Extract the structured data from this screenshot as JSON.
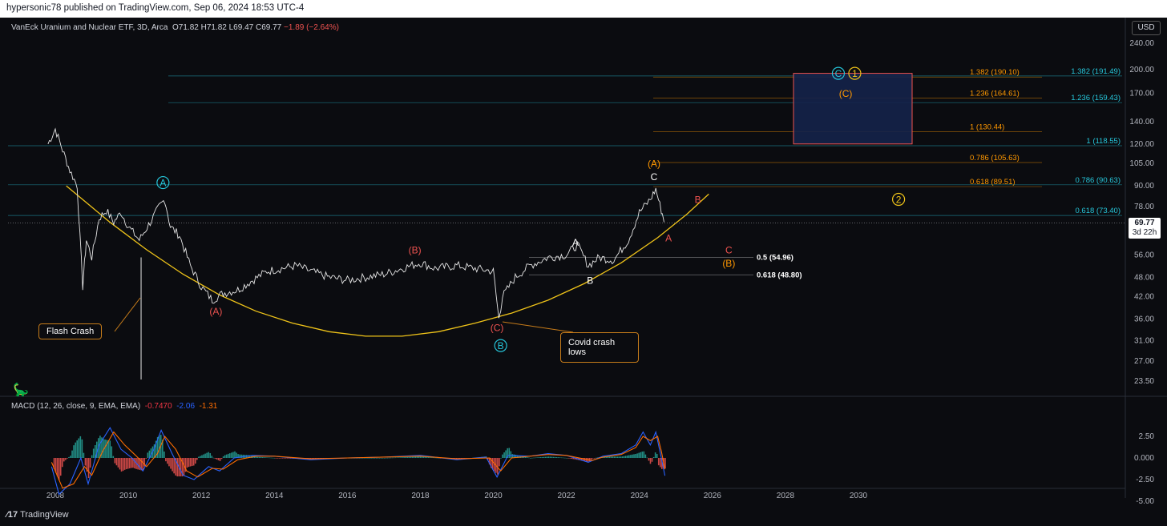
{
  "header": {
    "publisher": "hypersonic78 published on TradingView.com, Sep 06, 2024 18:53 UTC-4"
  },
  "legend": {
    "title": "VanEck Uranium and Nuclear ETF, 3D, Arca",
    "ohlc": "O71.82 H71.82 L69.47 C69.77",
    "change": "−1.89 (−2.64%)"
  },
  "macd_legend": {
    "label": "MACD (12, 26, close, 9, EMA, EMA)",
    "hist": "-0.7470",
    "macd": "-2.06",
    "signal": "-1.31"
  },
  "currency": "USD",
  "last_price": {
    "value": "69.77",
    "countdown": "3d 22h"
  },
  "logo": "TradingView",
  "colors": {
    "background": "#0b0c10",
    "up": "#26a69a",
    "down": "#ef5350",
    "curve": "#f0c419",
    "fib_orange": "#ff9800",
    "fib_cyan": "#26c6da",
    "box": "#1a2a5a"
  },
  "callouts": {
    "flash_crash": "Flash Crash",
    "covid_line1": "Covid crash",
    "covid_line2": "lows"
  },
  "chart_data": {
    "type": "line",
    "y_scale": "log",
    "ylim": [
      23.5,
      240
    ],
    "xlim": [
      2007.5,
      2031
    ],
    "x_ticks": [
      "2008",
      "2010",
      "2012",
      "2014",
      "2016",
      "2018",
      "2020",
      "2022",
      "2024",
      "2026",
      "2028",
      "2030"
    ],
    "y_ticks": [
      "240.00",
      "200.00",
      "170.00",
      "140.00",
      "120.00",
      "105.00",
      "90.00",
      "78.00",
      "67.00",
      "56.00",
      "48.00",
      "42.00",
      "36.00",
      "31.00",
      "27.00",
      "23.50"
    ],
    "series": [
      {
        "values": [
          [
            2007.8,
            120
          ],
          [
            2008.0,
            133
          ],
          [
            2008.2,
            115
          ],
          [
            2008.4,
            100
          ],
          [
            2008.6,
            90
          ],
          [
            2008.75,
            45
          ],
          [
            2008.85,
            62
          ],
          [
            2009.0,
            55
          ],
          [
            2009.2,
            72
          ],
          [
            2009.4,
            76
          ],
          [
            2009.6,
            70
          ],
          [
            2009.8,
            75
          ],
          [
            2010.0,
            68
          ],
          [
            2010.3,
            62
          ],
          [
            2010.6,
            70
          ],
          [
            2010.85,
            78
          ],
          [
            2011.0,
            82
          ],
          [
            2011.15,
            68
          ],
          [
            2011.4,
            64
          ],
          [
            2011.7,
            52
          ],
          [
            2012.0,
            45
          ],
          [
            2012.3,
            41
          ],
          [
            2012.6,
            43
          ],
          [
            2013.0,
            44
          ],
          [
            2013.4,
            47
          ],
          [
            2013.8,
            50
          ],
          [
            2014.2,
            51
          ],
          [
            2014.6,
            52
          ],
          [
            2015.0,
            50
          ],
          [
            2015.5,
            48
          ],
          [
            2016.0,
            47
          ],
          [
            2016.5,
            48
          ],
          [
            2017.0,
            49
          ],
          [
            2017.5,
            51
          ],
          [
            2018.0,
            53
          ],
          [
            2018.4,
            51
          ],
          [
            2019.0,
            52
          ],
          [
            2019.5,
            51
          ],
          [
            2020.0,
            50
          ],
          [
            2020.15,
            36
          ],
          [
            2020.25,
            42
          ],
          [
            2020.6,
            48
          ],
          [
            2021.0,
            52
          ],
          [
            2021.5,
            55
          ],
          [
            2022.0,
            56
          ],
          [
            2022.3,
            60
          ],
          [
            2022.6,
            52
          ],
          [
            2022.9,
            55
          ],
          [
            2023.3,
            54
          ],
          [
            2023.7,
            62
          ],
          [
            2024.0,
            75
          ],
          [
            2024.3,
            82
          ],
          [
            2024.45,
            88
          ],
          [
            2024.6,
            76
          ],
          [
            2024.7,
            69.77
          ]
        ]
      }
    ],
    "fib_levels_left": [
      {
        "label": "1.382 (190.10)",
        "y": 190.1
      },
      {
        "label": "1.236 (164.61)",
        "y": 164.61
      },
      {
        "label": "1 (130.44)",
        "y": 130.44
      },
      {
        "label": "0.786 (105.63)",
        "y": 105.63
      },
      {
        "label": "0.618 (89.51)",
        "y": 89.51
      }
    ],
    "fib_levels_right": [
      {
        "label": "1.382 (191.49)",
        "y": 191.49
      },
      {
        "label": "1.236 (159.43)",
        "y": 159.43
      },
      {
        "label": "1 (118.55)",
        "y": 118.55
      },
      {
        "label": "0.786 (90.63)",
        "y": 90.63
      },
      {
        "label": "0.618 (73.40)",
        "y": 73.4
      }
    ],
    "fib_levels_low": [
      {
        "label": "0.5 (54.96)",
        "y": 54.96
      },
      {
        "label": "0.618 (48.80)",
        "y": 48.8
      }
    ],
    "wave_labels": [
      {
        "text": "A",
        "x": 2010.95,
        "y": 92,
        "color": "#26c6da",
        "circled": true
      },
      {
        "text": "B",
        "x": 2020.2,
        "y": 30,
        "color": "#26c6da",
        "circled": true
      },
      {
        "text": "C",
        "x": 2029.45,
        "y": 195,
        "color": "#26c6da",
        "circled": true
      },
      {
        "text": "1",
        "x": 2029.9,
        "y": 195,
        "color": "#f0c419",
        "circled": true
      },
      {
        "text": "2",
        "x": 2031.1,
        "y": 82,
        "color": "#f0c419",
        "circled": true
      },
      {
        "text": "(C)",
        "x": 2029.65,
        "y": 170,
        "color": "#ff9800",
        "circled": false
      },
      {
        "text": "(A)",
        "x": 2024.4,
        "y": 105,
        "color": "#ff9800",
        "circled": false
      },
      {
        "text": "C",
        "x": 2024.4,
        "y": 96,
        "color": "#ffffff",
        "circled": false
      },
      {
        "text": "B",
        "x": 2025.6,
        "y": 82,
        "color": "#ef5350",
        "circled": false
      },
      {
        "text": "A",
        "x": 2024.8,
        "y": 63,
        "color": "#ef5350",
        "circled": false
      },
      {
        "text": "C",
        "x": 2026.45,
        "y": 58,
        "color": "#ef5350",
        "circled": false
      },
      {
        "text": "(B)",
        "x": 2026.45,
        "y": 53,
        "color": "#ff9800",
        "circled": false
      },
      {
        "text": "A",
        "x": 2022.25,
        "y": 61,
        "color": "#ffffff",
        "circled": false
      },
      {
        "text": "B",
        "x": 2022.65,
        "y": 47,
        "color": "#ffffff",
        "circled": false
      },
      {
        "text": "(B)",
        "x": 2017.85,
        "y": 58,
        "color": "#ef5350",
        "circled": false
      },
      {
        "text": "(A)",
        "x": 2012.4,
        "y": 38,
        "color": "#ef5350",
        "circled": false
      },
      {
        "text": "(C)",
        "x": 2020.1,
        "y": 34,
        "color": "#ef5350",
        "circled": false
      }
    ],
    "target_box": {
      "x": [
        2028.3,
        2031.0
      ],
      "y": [
        120,
        195
      ]
    },
    "curve": [
      [
        2008.3,
        90
      ],
      [
        2009.5,
        70
      ],
      [
        2010.5,
        58
      ],
      [
        2011.5,
        49
      ],
      [
        2012.5,
        42.5
      ],
      [
        2013.5,
        38
      ],
      [
        2014.5,
        35
      ],
      [
        2015.5,
        33
      ],
      [
        2016.5,
        32
      ],
      [
        2017.5,
        32
      ],
      [
        2018.5,
        33
      ],
      [
        2019.5,
        35
      ],
      [
        2020.5,
        37.5
      ],
      [
        2021.5,
        41
      ],
      [
        2022.5,
        46
      ],
      [
        2023.5,
        53
      ],
      [
        2024.5,
        63
      ],
      [
        2025.3,
        74
      ],
      [
        2025.9,
        85
      ]
    ],
    "macd": {
      "ylim": [
        -5,
        4.5
      ],
      "y_ticks": [
        "2.50",
        "0.000",
        "-2.50",
        "-5.00"
      ],
      "macd_line": [
        [
          2007.9,
          -1
        ],
        [
          2008.1,
          -4.2
        ],
        [
          2008.4,
          -3
        ],
        [
          2008.7,
          0
        ],
        [
          2008.9,
          -3
        ],
        [
          2009.2,
          1.5
        ],
        [
          2009.5,
          3.5
        ],
        [
          2009.8,
          1
        ],
        [
          2010.1,
          0
        ],
        [
          2010.4,
          -1.5
        ],
        [
          2010.7,
          1
        ],
        [
          2010.9,
          3.2
        ],
        [
          2011.2,
          0.5
        ],
        [
          2011.5,
          -2
        ],
        [
          2011.8,
          -2.5
        ],
        [
          2012.2,
          -1
        ],
        [
          2012.5,
          -1.5
        ],
        [
          2012.9,
          0
        ],
        [
          2013.4,
          0.3
        ],
        [
          2014.0,
          0.2
        ],
        [
          2015.0,
          -0.2
        ],
        [
          2016.0,
          0
        ],
        [
          2017.0,
          0.1
        ],
        [
          2018.0,
          0.3
        ],
        [
          2019.0,
          -0.2
        ],
        [
          2019.8,
          0.1
        ],
        [
          2020.1,
          -2.2
        ],
        [
          2020.4,
          0.3
        ],
        [
          2021.0,
          0.2
        ],
        [
          2021.5,
          0.5
        ],
        [
          2022.0,
          0.3
        ],
        [
          2022.6,
          -0.5
        ],
        [
          2023.0,
          0.2
        ],
        [
          2023.5,
          0.5
        ],
        [
          2023.9,
          1.5
        ],
        [
          2024.1,
          3
        ],
        [
          2024.3,
          1.5
        ],
        [
          2024.45,
          3
        ],
        [
          2024.6,
          0
        ],
        [
          2024.7,
          -2.06
        ]
      ],
      "signal_line": [
        [
          2007.9,
          -0.5
        ],
        [
          2008.2,
          -3.5
        ],
        [
          2008.5,
          -3
        ],
        [
          2008.8,
          -1
        ],
        [
          2009.0,
          -2
        ],
        [
          2009.3,
          0.8
        ],
        [
          2009.6,
          3
        ],
        [
          2009.9,
          1.5
        ],
        [
          2010.2,
          0.3
        ],
        [
          2010.5,
          -1
        ],
        [
          2010.8,
          0.5
        ],
        [
          2011.0,
          2.5
        ],
        [
          2011.3,
          1
        ],
        [
          2011.6,
          -1.5
        ],
        [
          2011.9,
          -2.2
        ],
        [
          2012.3,
          -1.2
        ],
        [
          2012.6,
          -1.3
        ],
        [
          2013.0,
          -0.2
        ],
        [
          2013.5,
          0.2
        ],
        [
          2014.0,
          0.2
        ],
        [
          2015.0,
          -0.1
        ],
        [
          2016.0,
          0
        ],
        [
          2017.0,
          0.1
        ],
        [
          2018.0,
          0.2
        ],
        [
          2019.0,
          -0.1
        ],
        [
          2019.9,
          0
        ],
        [
          2020.2,
          -1.5
        ],
        [
          2020.5,
          0
        ],
        [
          2021.0,
          0.2
        ],
        [
          2021.5,
          0.4
        ],
        [
          2022.0,
          0.3
        ],
        [
          2022.7,
          -0.3
        ],
        [
          2023.0,
          0.1
        ],
        [
          2023.5,
          0.4
        ],
        [
          2023.9,
          1.2
        ],
        [
          2024.1,
          2.5
        ],
        [
          2024.3,
          2
        ],
        [
          2024.5,
          2.5
        ],
        [
          2024.6,
          0.8
        ],
        [
          2024.7,
          -1.31
        ]
      ]
    }
  }
}
